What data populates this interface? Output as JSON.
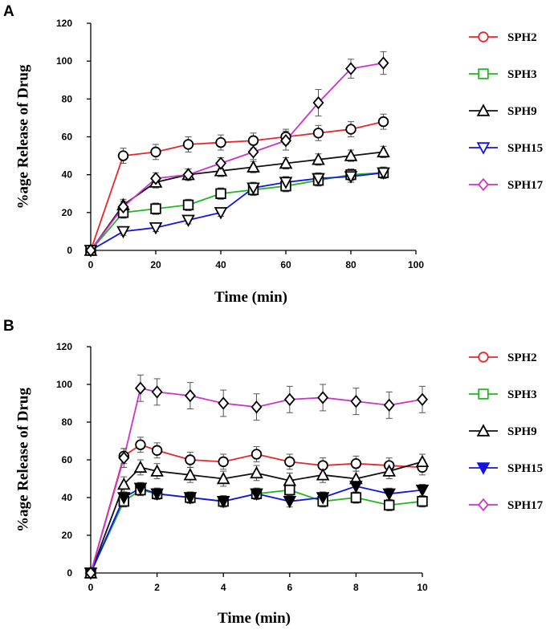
{
  "chart_data": [
    {
      "panel": "A",
      "type": "line",
      "xlabel": "Time (min)",
      "ylabel": "%age Release of Drug",
      "xlim": [
        0,
        100
      ],
      "ylim": [
        0,
        120
      ],
      "xticks": [
        0,
        20,
        40,
        60,
        80,
        100
      ],
      "yticks": [
        0,
        20,
        40,
        60,
        80,
        100,
        120
      ],
      "x": [
        0,
        10,
        20,
        30,
        40,
        50,
        60,
        70,
        80,
        90
      ],
      "series": [
        {
          "name": "SPH2",
          "color": "#e8262b",
          "marker": "circle",
          "values": [
            0,
            50,
            52,
            56,
            57,
            58,
            60,
            62,
            64,
            68
          ],
          "errors": [
            0,
            4,
            4,
            4,
            4,
            4,
            4,
            4,
            4,
            4
          ]
        },
        {
          "name": "SPH3",
          "color": "#1fb71f",
          "marker": "square",
          "values": [
            0,
            20,
            22,
            24,
            30,
            32,
            34,
            37,
            40,
            41
          ],
          "errors": [
            0,
            3,
            3,
            3,
            3,
            3,
            3,
            3,
            3,
            3
          ]
        },
        {
          "name": "SPH9",
          "color": "#111111",
          "marker": "triangle-up",
          "values": [
            0,
            24,
            36,
            40,
            42,
            44,
            46,
            48,
            50,
            52
          ],
          "errors": [
            0,
            3,
            3,
            3,
            3,
            3,
            3,
            3,
            3,
            3
          ]
        },
        {
          "name": "SPH15",
          "color": "#1414e0",
          "marker": "triangle-down",
          "values": [
            0,
            10,
            12,
            16,
            20,
            33,
            36,
            38,
            39,
            41
          ],
          "errors": [
            0,
            2,
            2,
            2,
            2,
            3,
            3,
            3,
            3,
            3
          ]
        },
        {
          "name": "SPH17",
          "color": "#cc33cc",
          "marker": "diamond",
          "values": [
            0,
            23,
            38,
            40,
            46,
            52,
            58,
            78,
            96,
            99
          ],
          "errors": [
            0,
            3,
            3,
            3,
            3,
            4,
            5,
            7,
            5,
            6
          ]
        }
      ]
    },
    {
      "panel": "B",
      "type": "line",
      "xlabel": "Time (min)",
      "ylabel": "%age Release of Drug",
      "xlim": [
        0,
        10
      ],
      "ylim": [
        0,
        120
      ],
      "xticks": [
        0,
        2,
        4,
        6,
        8,
        10
      ],
      "yticks": [
        0,
        20,
        40,
        60,
        80,
        100,
        120
      ],
      "x": [
        0,
        1,
        1.5,
        2,
        3,
        4,
        5,
        6,
        7,
        8,
        9,
        10
      ],
      "series": [
        {
          "name": "SPH2",
          "color": "#e8262b",
          "marker": "circle",
          "values": [
            0,
            62,
            68,
            65,
            60,
            59,
            63,
            59,
            57,
            58,
            57,
            56
          ],
          "errors": [
            0,
            4,
            4,
            4,
            4,
            4,
            4,
            4,
            4,
            4,
            4,
            4
          ]
        },
        {
          "name": "SPH3",
          "color": "#1fb71f",
          "marker": "square",
          "values": [
            0,
            38,
            44,
            42,
            40,
            38,
            42,
            44,
            38,
            40,
            36,
            38
          ],
          "errors": [
            0,
            3,
            3,
            3,
            3,
            3,
            3,
            3,
            3,
            3,
            3,
            3
          ]
        },
        {
          "name": "SPH9",
          "color": "#111111",
          "marker": "triangle-up",
          "values": [
            0,
            47,
            56,
            54,
            52,
            50,
            53,
            49,
            52,
            50,
            54,
            59
          ],
          "errors": [
            0,
            4,
            4,
            4,
            4,
            4,
            4,
            4,
            4,
            4,
            4,
            4
          ]
        },
        {
          "name": "SPH15",
          "color": "#1414e0",
          "marker": "triangle-down-filled",
          "values": [
            0,
            40,
            45,
            42,
            40,
            38,
            42,
            38,
            40,
            46,
            42,
            44
          ],
          "errors": [
            0,
            3,
            3,
            3,
            3,
            3,
            3,
            3,
            3,
            3,
            3,
            3
          ]
        },
        {
          "name": "SPH17",
          "color": "#cc33cc",
          "marker": "diamond",
          "values": [
            0,
            61,
            98,
            96,
            94,
            90,
            88,
            92,
            93,
            91,
            89,
            92
          ],
          "errors": [
            0,
            5,
            7,
            7,
            7,
            7,
            7,
            7,
            7,
            7,
            7,
            7
          ]
        }
      ]
    }
  ]
}
